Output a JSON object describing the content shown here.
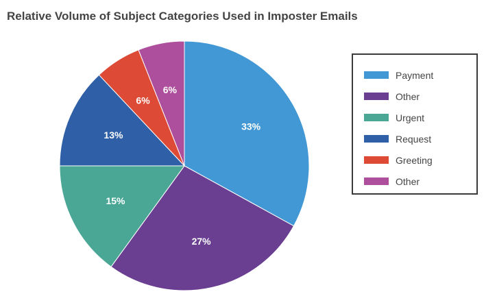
{
  "chart_data": {
    "type": "pie",
    "title": "Relative Volume of Subject Categories Used in Imposter Emails",
    "legend_position": "right",
    "slices": [
      {
        "label": "Payment",
        "value": 33,
        "display": "33%",
        "color": "#4298d4"
      },
      {
        "label": "Other",
        "value": 27,
        "display": "27%",
        "color": "#6a3f92"
      },
      {
        "label": "Urgent",
        "value": 15,
        "display": "15%",
        "color": "#4aa796"
      },
      {
        "label": "Request",
        "value": 13,
        "display": "13%",
        "color": "#2f5fa6"
      },
      {
        "label": "Greeting",
        "value": 6,
        "display": "6%",
        "color": "#dd4a36"
      },
      {
        "label": "Other",
        "value": 6,
        "display": "6%",
        "color": "#ad4f9c"
      }
    ]
  }
}
